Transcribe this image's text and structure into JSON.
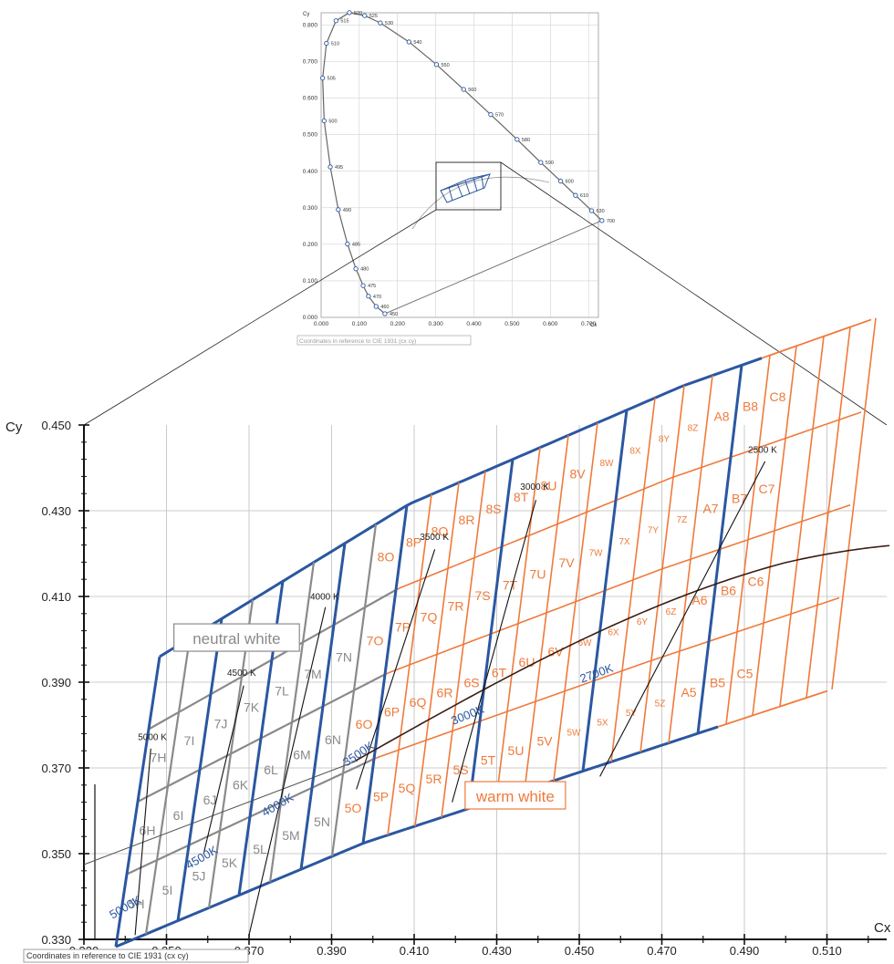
{
  "inset": {
    "x_axis_label": "Cx",
    "y_axis_label": "Cy",
    "x_ticks": [
      "0.000",
      "0.100",
      "0.200",
      "0.300",
      "0.400",
      "0.500",
      "0.600",
      "0.700"
    ],
    "y_ticks": [
      "0.000",
      "0.100",
      "0.200",
      "0.300",
      "0.400",
      "0.500",
      "0.600",
      "0.700",
      "0.800"
    ],
    "caption": "Coordinates in reference to CIE 1931 (cx cy)",
    "locus": [
      {
        "wl": "450",
        "x": 0.167,
        "y": 0.01
      },
      {
        "wl": "460",
        "x": 0.144,
        "y": 0.03
      },
      {
        "wl": "470",
        "x": 0.124,
        "y": 0.058
      },
      {
        "wl": "475",
        "x": 0.11,
        "y": 0.087
      },
      {
        "wl": "480",
        "x": 0.091,
        "y": 0.133
      },
      {
        "wl": "485",
        "x": 0.069,
        "y": 0.201
      },
      {
        "wl": "490",
        "x": 0.045,
        "y": 0.295
      },
      {
        "wl": "495",
        "x": 0.024,
        "y": 0.412
      },
      {
        "wl": "500",
        "x": 0.008,
        "y": 0.538
      },
      {
        "wl": "505",
        "x": 0.004,
        "y": 0.655
      },
      {
        "wl": "510",
        "x": 0.014,
        "y": 0.75
      },
      {
        "wl": "515",
        "x": 0.039,
        "y": 0.812
      },
      {
        "wl": "520",
        "x": 0.074,
        "y": 0.834
      },
      {
        "wl": "525",
        "x": 0.114,
        "y": 0.826
      },
      {
        "wl": "530",
        "x": 0.155,
        "y": 0.806
      },
      {
        "wl": "540",
        "x": 0.23,
        "y": 0.754
      },
      {
        "wl": "550",
        "x": 0.302,
        "y": 0.692
      },
      {
        "wl": "560",
        "x": 0.373,
        "y": 0.624
      },
      {
        "wl": "570",
        "x": 0.444,
        "y": 0.555
      },
      {
        "wl": "580",
        "x": 0.513,
        "y": 0.487
      },
      {
        "wl": "590",
        "x": 0.575,
        "y": 0.424
      },
      {
        "wl": "600",
        "x": 0.627,
        "y": 0.373
      },
      {
        "wl": "610",
        "x": 0.666,
        "y": 0.334
      },
      {
        "wl": "630",
        "x": 0.708,
        "y": 0.292
      },
      {
        "wl": "700",
        "x": 0.735,
        "y": 0.265
      }
    ]
  },
  "chart_data": {
    "type": "scatter",
    "title": "",
    "xlabel": "Cx",
    "ylabel": "Cy",
    "xlim": [
      0.33,
      0.525
    ],
    "ylim": [
      0.33,
      0.45
    ],
    "x_ticks": [
      "0.330",
      "0.350",
      "0.370",
      "0.390",
      "0.410",
      "0.430",
      "0.450",
      "0.470",
      "0.490",
      "0.510"
    ],
    "y_ticks": [
      "0.330",
      "0.350",
      "0.370",
      "0.390",
      "0.410",
      "0.430",
      "0.450"
    ],
    "caption": "Coordinates in reference to CIE 1931 (cx cy)",
    "region_labels": [
      {
        "text": "neutral white",
        "color": "#8a8a8a",
        "x": 0.367,
        "y": 0.4002
      },
      {
        "text": "warm white",
        "color": "#ef7a3b",
        "x": 0.4345,
        "y": 0.3634
      }
    ],
    "cct_labels": [
      {
        "text": "5000 K",
        "x": 0.3466,
        "y": 0.3765
      },
      {
        "text": "4500 K",
        "x": 0.3682,
        "y": 0.3915
      },
      {
        "text": "4000 K",
        "x": 0.3883,
        "y": 0.4093
      },
      {
        "text": "3500 K",
        "x": 0.4149,
        "y": 0.4232
      },
      {
        "text": "3000 K",
        "x": 0.4392,
        "y": 0.4349
      },
      {
        "text": "2500 K",
        "x": 0.4944,
        "y": 0.4435
      }
    ],
    "cct_lines": [
      {
        "x1": 0.3462,
        "y1": 0.3745,
        "x2": 0.3424,
        "y2": 0.331
      },
      {
        "x1": 0.3687,
        "y1": 0.3892,
        "x2": 0.359,
        "y2": 0.35
      },
      {
        "x1": 0.3885,
        "y1": 0.4075,
        "x2": 0.37,
        "y2": 0.331
      },
      {
        "x1": 0.415,
        "y1": 0.421,
        "x2": 0.396,
        "y2": 0.365
      },
      {
        "x1": 0.4395,
        "y1": 0.4325,
        "x2": 0.4192,
        "y2": 0.362
      },
      {
        "x1": 0.495,
        "y1": 0.4415,
        "x2": 0.455,
        "y2": 0.368
      }
    ],
    "band_labels": [
      {
        "text": "5000K",
        "x": 0.3405,
        "y": 0.3367,
        "rot": -30
      },
      {
        "text": "4500K",
        "x": 0.359,
        "y": 0.3483,
        "rot": -30
      },
      {
        "text": "4000K",
        "x": 0.3774,
        "y": 0.3606,
        "rot": -30
      },
      {
        "text": "3500K",
        "x": 0.397,
        "y": 0.3725,
        "rot": -34
      },
      {
        "text": "3000K",
        "x": 0.4233,
        "y": 0.3815,
        "rot": -22
      },
      {
        "text": "2700K",
        "x": 0.4545,
        "y": 0.3912,
        "rot": -20
      }
    ],
    "series": [
      {
        "name": "neutral white",
        "color": "#8a8a8a",
        "bins": [
          "5H",
          "6H",
          "7H",
          "5I",
          "6I",
          "7I",
          "5J",
          "6J",
          "7J",
          "5K",
          "6K",
          "7K",
          "5L",
          "6L",
          "7L",
          "5M",
          "6M",
          "7M",
          "5N",
          "6N",
          "7N"
        ]
      },
      {
        "name": "warm white",
        "color": "#ef7a3b",
        "bins": [
          "5O",
          "6O",
          "7O",
          "8O",
          "5P",
          "6P",
          "7P",
          "8P",
          "5Q",
          "6Q",
          "7Q",
          "8Q",
          "5R",
          "6R",
          "7R",
          "8R",
          "5S",
          "6S",
          "7S",
          "8S",
          "5T",
          "6T",
          "7T",
          "8T",
          "5U",
          "6U",
          "7U",
          "8U",
          "5V",
          "6V",
          "7V",
          "8V",
          "5W",
          "6W",
          "7W",
          "8W",
          "5X",
          "6X",
          "7X",
          "8X",
          "5Y",
          "6Y",
          "7Y",
          "8Y",
          "5Z",
          "6Z",
          "7Z",
          "8Z",
          "A5",
          "A6",
          "A7",
          "A8",
          "B5",
          "B6",
          "B7",
          "B8",
          "C5",
          "C6",
          "C7",
          "C8"
        ]
      }
    ]
  }
}
